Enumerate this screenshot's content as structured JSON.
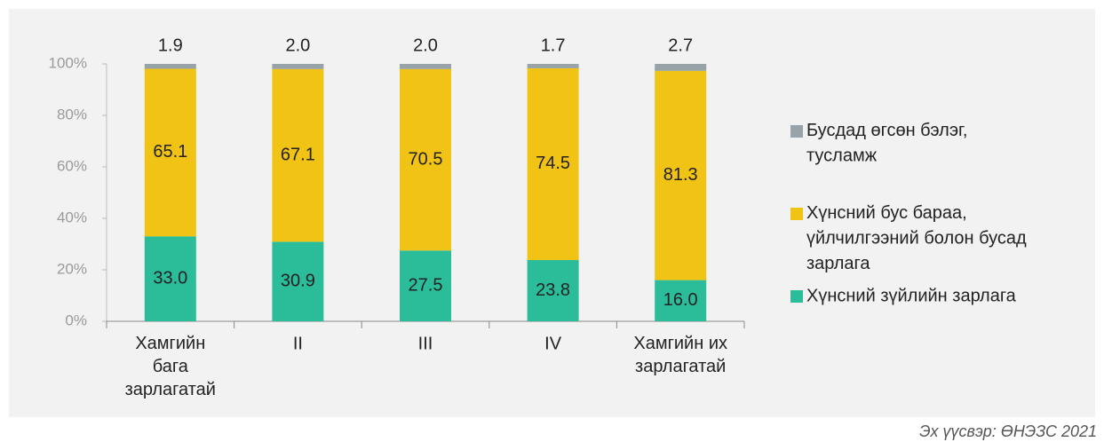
{
  "chart_data": {
    "type": "stacked_bar",
    "categories": [
      "Хамгийн\nбага\nзарлагатай",
      "II",
      "III",
      "IV",
      "Хамгийн их\nзарлагатай"
    ],
    "series": [
      {
        "name": "Хүнсний зүйлийн зарлага",
        "color": "#2bbd9a",
        "values": [
          33.0,
          30.9,
          27.5,
          23.8,
          16.0
        ],
        "value_labels": [
          "33.0",
          "30.9",
          "27.5",
          "23.8",
          "16.0"
        ]
      },
      {
        "name": "Хүнсний бус бараа,\nүйлчилгээний болон бусад\nзарлага",
        "color": "#f1c315",
        "values": [
          65.1,
          67.1,
          70.5,
          74.5,
          81.3
        ],
        "value_labels": [
          "65.1",
          "67.1",
          "70.5",
          "74.5",
          "81.3"
        ]
      },
      {
        "name": "Бусдад өгсөн бэлэг,\nтусламж",
        "color": "#97a3a6",
        "values": [
          1.9,
          2.0,
          2.0,
          1.7,
          2.7
        ],
        "value_labels": [
          "1.9",
          "2.0",
          "2.0",
          "1.7",
          "2.7"
        ]
      }
    ],
    "ylim": [
      0,
      100
    ],
    "yticks": [
      {
        "value": 0,
        "label": "0%"
      },
      {
        "value": 20,
        "label": "20%"
      },
      {
        "value": 40,
        "label": "40%"
      },
      {
        "value": 60,
        "label": "60%"
      },
      {
        "value": 80,
        "label": "80%"
      },
      {
        "value": 100,
        "label": "100%"
      }
    ],
    "legend": "right",
    "source": "Эх үүсвэр: ӨНЭЗС 2021"
  }
}
